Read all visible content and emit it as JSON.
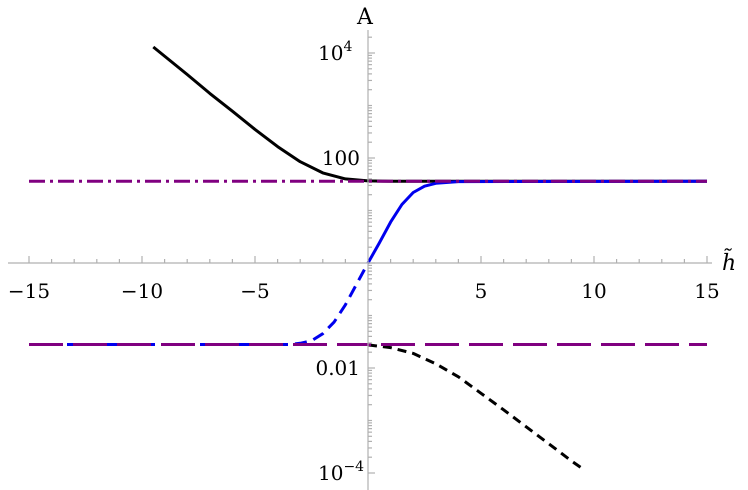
{
  "chart_data": {
    "type": "line",
    "title": "",
    "xlabel": "h̃",
    "ylabel": "A",
    "yscale": "log",
    "xlim": [
      -15,
      15
    ],
    "ylim": [
      0.0001,
      20000
    ],
    "x_ticks": [
      {
        "value": -15,
        "label": "−15"
      },
      {
        "value": -10,
        "label": "−10"
      },
      {
        "value": -5,
        "label": "−5"
      },
      {
        "value": 5,
        "label": "5"
      },
      {
        "value": 10,
        "label": "10"
      },
      {
        "value": 15,
        "label": "15"
      }
    ],
    "y_ticks": [
      {
        "value": 0.0001,
        "label": "10",
        "exp": "−4"
      },
      {
        "value": 0.01,
        "label": "0.01",
        "exp": ""
      },
      {
        "value": 100,
        "label": "100",
        "exp": ""
      },
      {
        "value": 10000,
        "label": "10",
        "exp": "4"
      }
    ],
    "grid": false,
    "colors": {
      "black": "#000000",
      "blue": "#0000ee",
      "purple": "#800080"
    },
    "series": [
      {
        "color": "#000000",
        "dash": "solid",
        "width": 3,
        "x": [
          -9.5,
          -8,
          -7,
          -6,
          -5,
          -4,
          -3,
          -2,
          -1,
          0,
          1,
          2,
          3,
          15
        ],
        "y": [
          13000,
          3900,
          1700,
          780,
          350,
          165,
          85,
          52,
          40,
          36.6,
          36,
          36,
          36,
          36
        ]
      },
      {
        "color": "#000000",
        "dash": "short",
        "width": 3,
        "x": [
          0,
          1,
          2,
          3,
          4,
          5,
          6,
          7,
          8,
          9,
          9.5
        ],
        "y": [
          0.0275,
          0.0245,
          0.019,
          0.012,
          0.0068,
          0.0033,
          0.0016,
          0.00076,
          0.00036,
          0.00017,
          0.00012
        ]
      },
      {
        "color": "#0000ee",
        "dash": "solid",
        "width": 3,
        "x": [
          0,
          0.5,
          1,
          1.5,
          2,
          2.5,
          3,
          4,
          15
        ],
        "y": [
          1,
          2.4,
          6,
          13,
          22,
          29,
          33,
          35.5,
          36
        ]
      },
      {
        "color": "#0000ee",
        "dash": "medium",
        "width": 3,
        "x": [
          -15,
          -3.5,
          -3,
          -2.5,
          -2,
          -1.5,
          -1,
          -0.5,
          0
        ],
        "y": [
          0.028,
          0.028,
          0.0295,
          0.033,
          0.045,
          0.075,
          0.16,
          0.4,
          1
        ]
      },
      {
        "color": "#800080",
        "dash": "dashdot",
        "width": 3,
        "x": [
          -15,
          15
        ],
        "y": [
          36,
          36
        ]
      },
      {
        "color": "#800080",
        "dash": "long",
        "width": 3,
        "x": [
          -15,
          15
        ],
        "y": [
          0.028,
          0.028
        ]
      }
    ]
  }
}
